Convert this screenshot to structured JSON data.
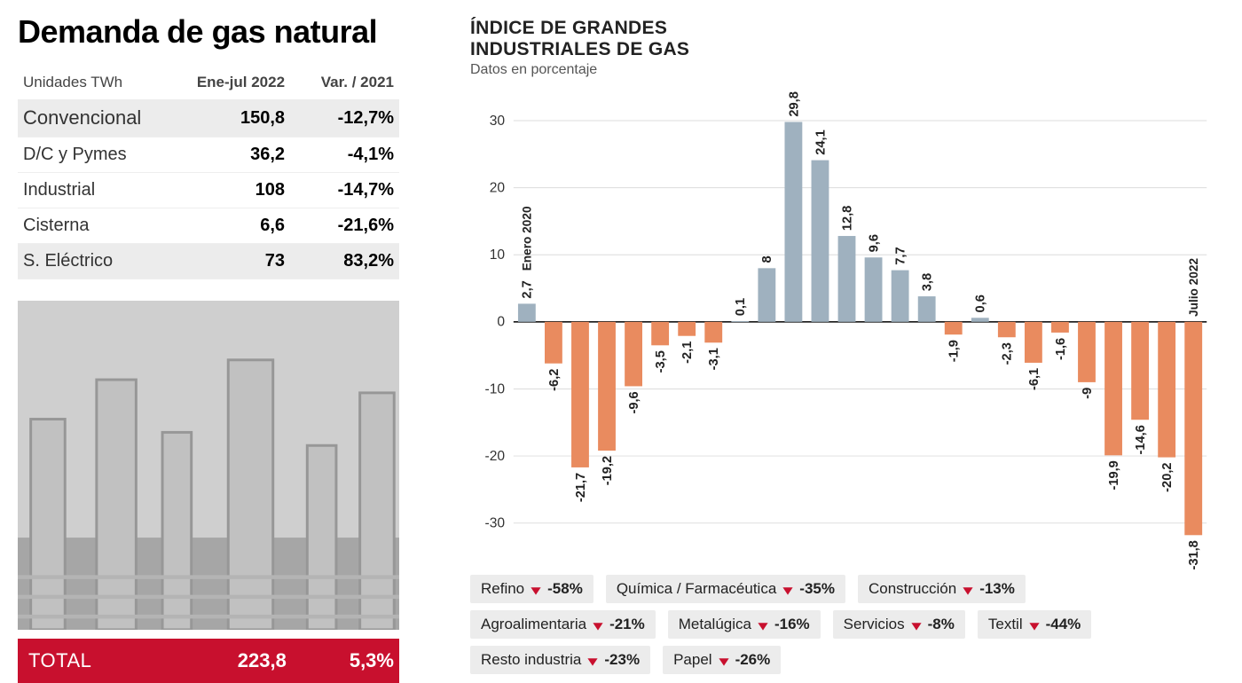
{
  "title": "Demanda de gas natural",
  "table": {
    "header": {
      "col1": "Unidades TWh",
      "col2": "Ene-jul 2022",
      "col3": "Var. / 2021"
    },
    "rows": [
      {
        "label": "Convencional",
        "value": "150,8",
        "change": "-12,7%",
        "shaded": true
      },
      {
        "label": "D/C y Pymes",
        "value": "36,2",
        "change": "-4,1%",
        "shaded": false
      },
      {
        "label": "Industrial",
        "value": "108",
        "change": "-14,7%",
        "shaded": false
      },
      {
        "label": "Cisterna",
        "value": "6,6",
        "change": "-21,6%",
        "shaded": false
      },
      {
        "label": "S. Eléctrico",
        "value": "73",
        "change": "83,2%",
        "shaded": true
      }
    ],
    "total": {
      "label": "TOTAL",
      "value": "223,8",
      "change": "5,3%"
    }
  },
  "chart": {
    "title_line1": "ÍNDICE DE GRANDES",
    "title_line2": "INDUSTRIALES DE GAS",
    "subtitle": "Datos en porcentaje",
    "start_label": "Enero 2020",
    "end_label": "Julio 2022",
    "ylim": [
      -32,
      30
    ],
    "yticks": [
      -30,
      -20,
      -10,
      0,
      10,
      20,
      30
    ],
    "bar_width": 0.66,
    "positive_color": "#9fb1bf",
    "negative_color": "#e98b5f",
    "grid_color": "#dcdcdc",
    "axis_color": "#000000",
    "label_fontsize": 15,
    "values": [
      2.7,
      -6.2,
      -21.7,
      -19.2,
      -9.6,
      -3.5,
      -2.1,
      -3.1,
      0.1,
      8,
      29.8,
      24.1,
      12.8,
      9.6,
      7.7,
      3.8,
      -1.9,
      0.6,
      -2.3,
      -6.1,
      -1.6,
      -9,
      -19.9,
      -14.6,
      -20.2,
      -31.8
    ],
    "display": [
      "2,7",
      "-6,2",
      "-21,7",
      "-19,2",
      "-9,6",
      "-3,5",
      "-2,1",
      "-3,1",
      "0,1",
      "8",
      "29,8",
      "24,1",
      "12,8",
      "9,6",
      "7,7",
      "3,8",
      "-1,9",
      "0,6",
      "-2,3",
      "-6,1",
      "-1,6",
      "-9",
      "-19,9",
      "-14,6",
      "-20,2",
      "-31,8"
    ]
  },
  "sectors": {
    "arrow_color": "#c8102e",
    "items": [
      {
        "name": "Refino",
        "pct": "-58%"
      },
      {
        "name": "Química / Farmacéutica",
        "pct": "-35%"
      },
      {
        "name": "Construcción",
        "pct": "-13%"
      },
      {
        "name": "Agroalimentaria",
        "pct": "-21%"
      },
      {
        "name": "Metalúgica",
        "pct": "-16%"
      },
      {
        "name": "Servicios",
        "pct": "-8%"
      },
      {
        "name": "Textil",
        "pct": "-44%"
      },
      {
        "name": "Resto industria",
        "pct": "-23%"
      },
      {
        "name": "Papel",
        "pct": "-26%"
      }
    ]
  },
  "colors": {
    "total_bar_bg": "#c8102e",
    "row_shade": "#ececec",
    "background": "#ffffff"
  }
}
